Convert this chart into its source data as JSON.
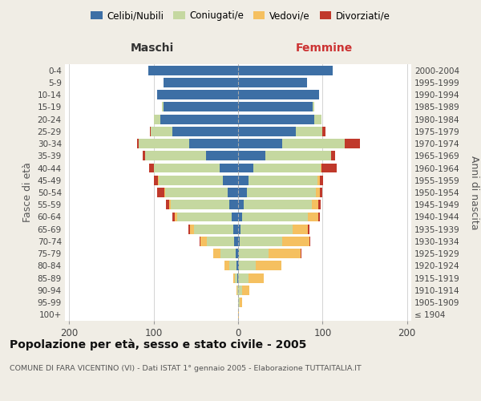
{
  "age_groups": [
    "100+",
    "95-99",
    "90-94",
    "85-89",
    "80-84",
    "75-79",
    "70-74",
    "65-69",
    "60-64",
    "55-59",
    "50-54",
    "45-49",
    "40-44",
    "35-39",
    "30-34",
    "25-29",
    "20-24",
    "15-19",
    "10-14",
    "5-9",
    "0-4"
  ],
  "birth_years": [
    "≤ 1904",
    "1905-1909",
    "1910-1914",
    "1915-1919",
    "1920-1924",
    "1925-1929",
    "1930-1934",
    "1935-1939",
    "1940-1944",
    "1945-1949",
    "1950-1954",
    "1955-1959",
    "1960-1964",
    "1965-1969",
    "1970-1974",
    "1975-1979",
    "1980-1984",
    "1985-1989",
    "1990-1994",
    "1995-1999",
    "2000-2004"
  ],
  "colors": {
    "celibe": "#3d6fa5",
    "coniugato": "#c5d8a0",
    "vedovo": "#f5c060",
    "divorziato": "#c0392b"
  },
  "males": {
    "celibe": [
      0,
      0,
      0,
      1,
      2,
      3,
      5,
      6,
      8,
      10,
      12,
      18,
      22,
      38,
      58,
      78,
      92,
      88,
      96,
      88,
      106
    ],
    "coniugato": [
      0,
      0,
      1,
      3,
      8,
      18,
      32,
      46,
      64,
      70,
      74,
      76,
      78,
      72,
      60,
      25,
      8,
      2,
      0,
      0,
      0
    ],
    "vedovo": [
      0,
      0,
      1,
      2,
      6,
      8,
      8,
      5,
      3,
      2,
      1,
      1,
      0,
      0,
      0,
      0,
      0,
      0,
      0,
      0,
      0
    ],
    "divorziato": [
      0,
      0,
      0,
      0,
      0,
      0,
      1,
      2,
      3,
      3,
      9,
      5,
      5,
      3,
      2,
      1,
      0,
      0,
      0,
      0,
      0
    ]
  },
  "females": {
    "nubile": [
      0,
      0,
      0,
      0,
      1,
      1,
      2,
      3,
      5,
      7,
      10,
      12,
      18,
      32,
      52,
      68,
      90,
      88,
      96,
      82,
      112
    ],
    "coniugata": [
      0,
      2,
      5,
      12,
      20,
      35,
      50,
      62,
      78,
      80,
      82,
      82,
      80,
      78,
      74,
      32,
      9,
      2,
      0,
      0,
      0
    ],
    "vedova": [
      1,
      3,
      8,
      18,
      30,
      38,
      32,
      18,
      12,
      8,
      5,
      3,
      1,
      0,
      0,
      0,
      0,
      0,
      0,
      0,
      0
    ],
    "divorziata": [
      0,
      0,
      0,
      0,
      0,
      1,
      1,
      1,
      2,
      3,
      3,
      4,
      18,
      5,
      18,
      3,
      0,
      0,
      0,
      0,
      0
    ]
  },
  "xlim": 205,
  "title": "Popolazione per età, sesso e stato civile - 2005",
  "subtitle": "COMUNE DI FARA VICENTINO (VI) - Dati ISTAT 1° gennaio 2005 - Elaborazione TUTTAITALIA.IT",
  "xlabel_left": "Maschi",
  "xlabel_right": "Femmine",
  "ylabel_left": "Fasce di età",
  "ylabel_right": "Anni di nascita",
  "bg_color": "#f0ede5",
  "plot_bg_color": "#ffffff",
  "grid_color": "#cccccc"
}
